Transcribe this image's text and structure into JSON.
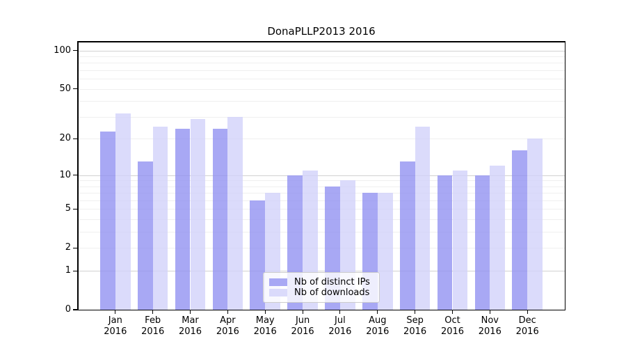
{
  "title": "DonaPLLP2013 2016",
  "chart_data": {
    "type": "bar",
    "x_categories": [
      "Jan",
      "Feb",
      "Mar",
      "Apr",
      "May",
      "Jun",
      "Jul",
      "Aug",
      "Sep",
      "Oct",
      "Nov",
      "Dec"
    ],
    "x_year": "2016",
    "series": [
      {
        "name": "Nb of distinct IPs",
        "color": "rgba(146,146,241,0.8)",
        "values": [
          23,
          13,
          24,
          24,
          6,
          10,
          8,
          7,
          13,
          10,
          10,
          16
        ]
      },
      {
        "name": "Nb of downloads",
        "color": "rgba(210,210,250,0.8)",
        "values": [
          32,
          25,
          29,
          30,
          7,
          11,
          9,
          7,
          25,
          11,
          12,
          20
        ]
      }
    ],
    "y_axis": {
      "scale": "log1p",
      "tick_values": [
        100,
        50,
        20,
        10,
        5,
        2,
        1,
        0
      ],
      "major_grid_values": [
        1,
        10,
        100
      ],
      "minor_grid_values": [
        2,
        3,
        4,
        5,
        6,
        7,
        8,
        9,
        20,
        30,
        40,
        50,
        60,
        70,
        80,
        90
      ],
      "range": [
        0,
        117
      ]
    },
    "grid": {
      "major_color": "#d2d2d2",
      "minor_color": "#efefef"
    },
    "legend": {
      "position": "lower center",
      "labels": [
        "Nb of distinct IPs",
        "Nb of downloads"
      ]
    }
  }
}
